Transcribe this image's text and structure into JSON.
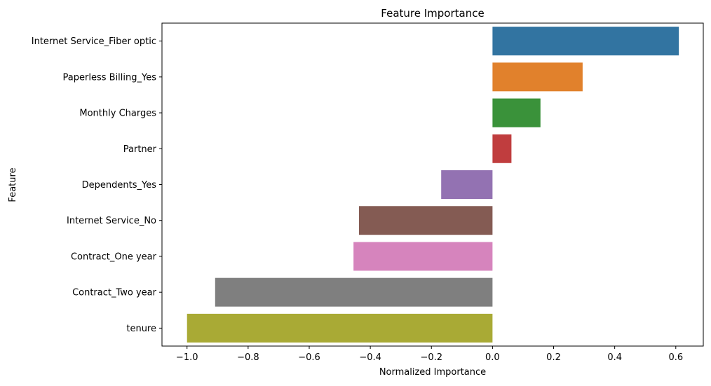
{
  "chart_data": {
    "type": "bar",
    "orientation": "horizontal",
    "title": "Feature Importance",
    "xlabel": "Normalized Importance",
    "ylabel": "Feature",
    "categories": [
      "Internet Service_Fiber optic",
      "Paperless Billing_Yes",
      "Monthly Charges",
      "Partner",
      "Dependents_Yes",
      "Internet Service_No",
      "Contract_One year",
      "Contract_Two year",
      "tenure"
    ],
    "values": [
      0.61,
      0.295,
      0.157,
      0.062,
      -0.168,
      -0.437,
      -0.455,
      -0.908,
      -1.0
    ],
    "colors": [
      "#3274a1",
      "#e1812c",
      "#3a923a",
      "#c03d3e",
      "#9372b2",
      "#845b53",
      "#d684bd",
      "#7f7f7f",
      "#a9aa35"
    ],
    "xlim": [
      -1.082,
      0.69
    ],
    "xticks": [
      -1.0,
      -0.8,
      -0.6,
      -0.4,
      -0.2,
      0.0,
      0.2,
      0.4,
      0.6
    ],
    "xtick_labels": [
      "−1.0",
      "−0.8",
      "−0.6",
      "−0.4",
      "−0.2",
      "0.0",
      "0.2",
      "0.4",
      "0.6"
    ],
    "grid": false,
    "legend": "none"
  }
}
